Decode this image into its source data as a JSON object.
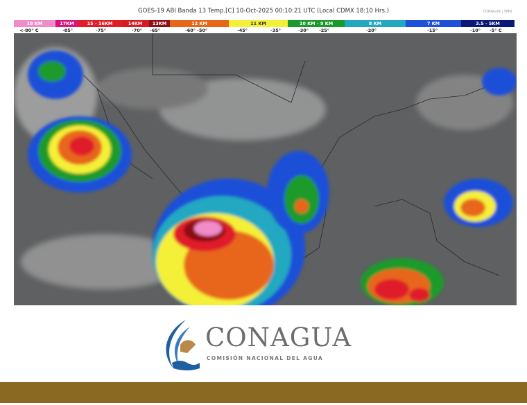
{
  "header": {
    "title": "GOES-19 ABI Banda 13 Temp.[C] 10-Oct-2025 00:10:21 UTC (Local CDMX  18:10 Hrs.)",
    "agencies": "CONAGUA | SMN"
  },
  "legend": {
    "bands": [
      {
        "label": "18 KM",
        "color": "#f08cc8"
      },
      {
        "label": "17KM",
        "color": "#d8147c"
      },
      {
        "label": "15 - 16KM",
        "color": "#e01e2a"
      },
      {
        "label": "14KM",
        "color": "#d81a22"
      },
      {
        "label": "13KM",
        "color": "#8c1018"
      },
      {
        "label": "12 KM",
        "color": "#e8661a"
      },
      {
        "label": "11 KM",
        "color": "#f4f038"
      },
      {
        "label": "10 KM -  9 KM",
        "color": "#1a9a2c"
      },
      {
        "label": "8 KM",
        "color": "#24a8c0"
      },
      {
        "label": "7 KM",
        "color": "#1e50d8"
      },
      {
        "label": "3.5 - 5KM",
        "color": "#0c1878"
      }
    ],
    "temps": [
      "<-80° C",
      "-85°",
      "-75°",
      "-70°",
      "-65°",
      "-60°  -50°",
      "-45°",
      "-35°",
      "-30°",
      "-25°",
      "-20°",
      "-15°",
      "-10°",
      "-5°  C"
    ]
  },
  "logo": {
    "name": "CONAGUA",
    "subtitle": "COMISIÓN NACIONAL DEL AGUA"
  },
  "colors": {
    "footer_bar": "#8a6a22",
    "logo_blue": "#1f5fa0",
    "logo_gold": "#b8894a"
  }
}
